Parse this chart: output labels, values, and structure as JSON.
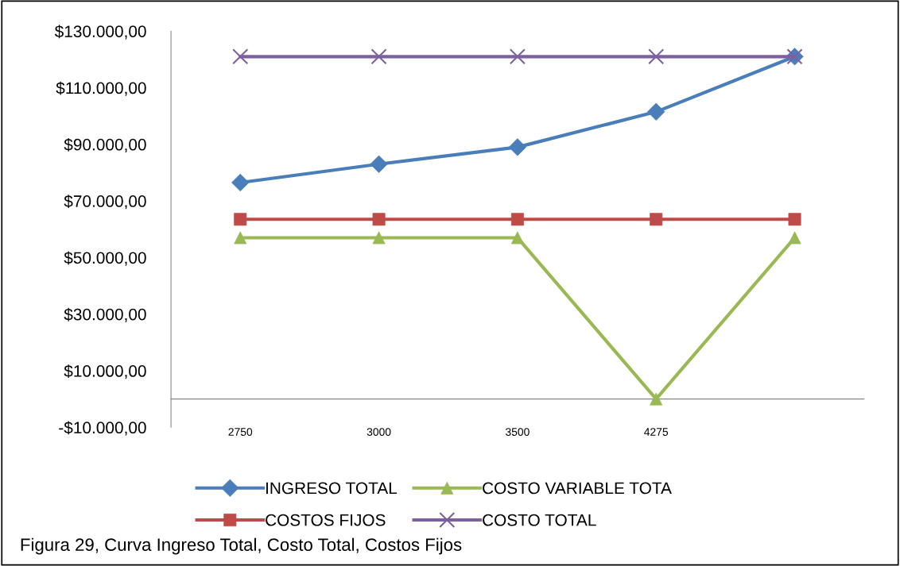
{
  "chart_data": {
    "type": "line",
    "categories": [
      "2750",
      "3000",
      "3500",
      "4275",
      null
    ],
    "series": [
      {
        "name": "INGRESO TOTAL",
        "color": "#4a7ebb",
        "marker": "diamond",
        "values": [
          76500,
          83000,
          89000,
          101500,
          121000
        ]
      },
      {
        "name": "COSTOS FIJOS",
        "color": "#be4b48",
        "marker": "square",
        "values": [
          63500,
          63500,
          63500,
          63500,
          63500
        ]
      },
      {
        "name": "COSTO VARIABLE TOTA",
        "color": "#98b954",
        "marker": "triangle",
        "values": [
          57000,
          57000,
          57000,
          0,
          57000
        ]
      },
      {
        "name": "COSTO TOTAL",
        "color": "#7d60a0",
        "marker": "cross",
        "values": [
          121000,
          121000,
          121000,
          121000,
          121000
        ]
      }
    ],
    "ylim": [
      -10000,
      130000
    ],
    "yticks": [
      {
        "value": -10000,
        "label": "-$10.000,00"
      },
      {
        "value": 10000,
        "label": "$10.000,00"
      },
      {
        "value": 30000,
        "label": "$30.000,00"
      },
      {
        "value": 50000,
        "label": "$50.000,00"
      },
      {
        "value": 70000,
        "label": "$70.000,00"
      },
      {
        "value": 90000,
        "label": "$90.000,00"
      },
      {
        "value": 110000,
        "label": "$110.000,00"
      },
      {
        "value": 130000,
        "label": "$130.000,00"
      }
    ],
    "grid": false,
    "legend": "bottom",
    "line_style": "solid",
    "annotations": [
      "Figura 29, Curva Ingreso Total, Costo Total, Costos Fijos"
    ]
  }
}
